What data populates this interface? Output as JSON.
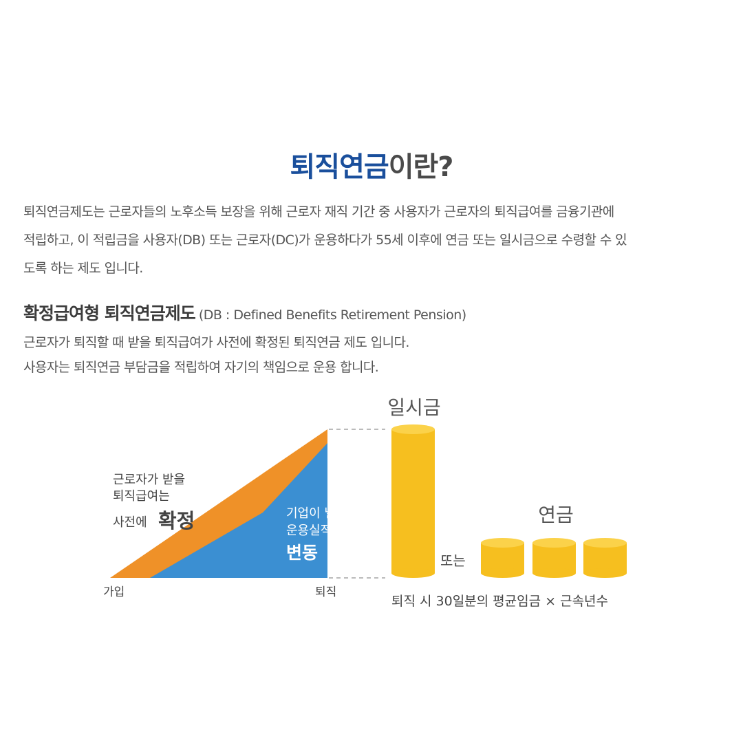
{
  "page_title": {
    "highlight": "퇴직연금",
    "rest": "이란?"
  },
  "intro_lines": [
    "퇴직연금제도는 근로자들의 노후소득 보장을 위해 근로자 재직 기간 중 사용자가 근로자의 퇴직급여를 금융기관에",
    "적립하고, 이 적립금을 사용자(DB) 또는 근로자(DC)가 운용하다가 55세 이후에 연금 또는 일시금으로 수령할 수 있",
    "도록 하는 제도 입니다."
  ],
  "db_section": {
    "heading": "확정급여형 퇴직연금제도",
    "heading_paren": "(DB : Defined Benefits Retirement Pension)",
    "desc_lines": [
      "근로자가 퇴직할 때 받을 퇴직급여가 사전에 확정된 퇴직연금 제도 입니다.",
      "사용자는 퇴직연금 부담금을 적립하여 자기의 책임으로 운용 합니다."
    ]
  },
  "diagram": {
    "colors": {
      "orange": "#ef9128",
      "blue": "#3b8fd2",
      "gold": "#f6bf1f",
      "gold_top": "#fbd24a",
      "dash": "#bbbbbb"
    },
    "orange_label_lines": [
      "근로자가 받을",
      "퇴직급여는"
    ],
    "orange_label_prefix": "사전에",
    "orange_label_emph": "확정",
    "blue_label_lines": [
      "기업이 낼 부담금은",
      "운용실적에 따라"
    ],
    "blue_label_emph": "변동",
    "axis_start": "가입",
    "axis_end": "퇴직",
    "lump_sum_label": "일시금",
    "or_label": "또는",
    "pension_label": "연금",
    "formula": "퇴직 시 30일분의 평균임금 × 근속년수"
  }
}
